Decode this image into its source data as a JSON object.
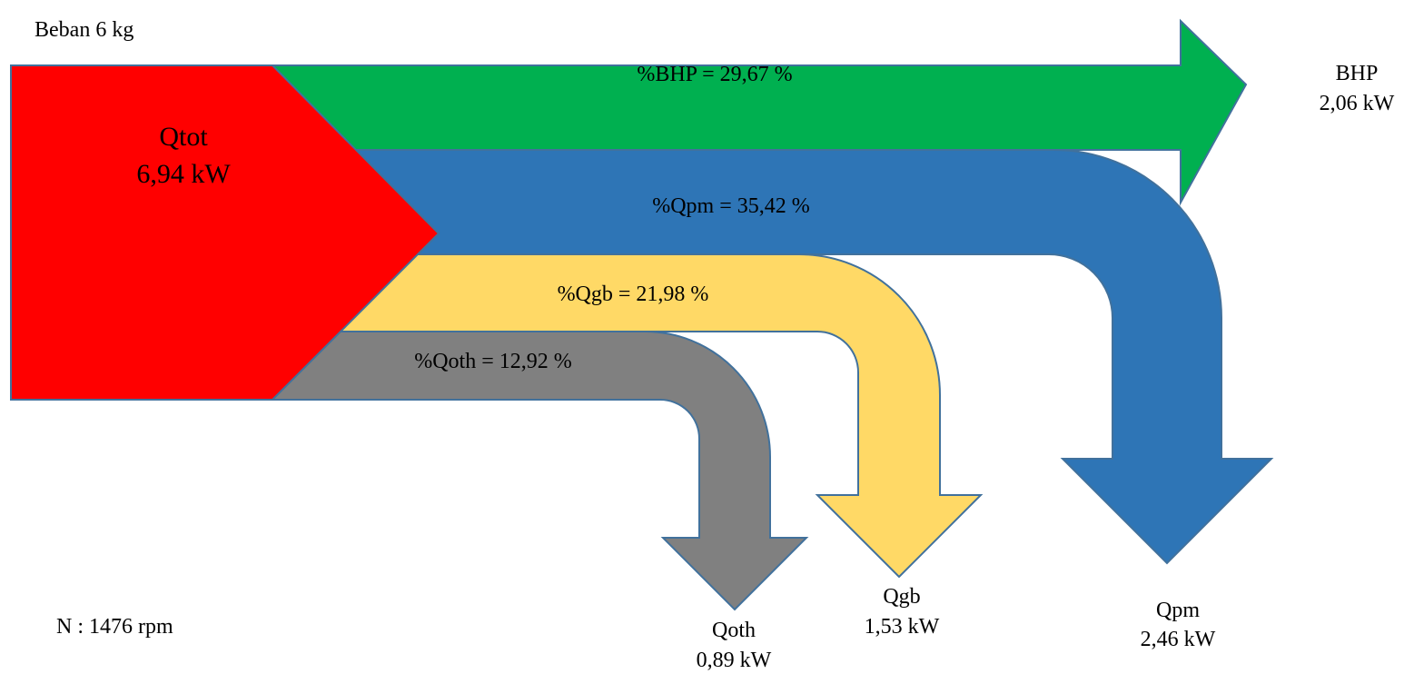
{
  "load_label": "Beban 6 kg",
  "speed_label": "N : 1476 rpm",
  "source": {
    "name": "Qtot",
    "value": "6,94 kW",
    "color": "#FF0000"
  },
  "flows": [
    {
      "key": "bhp",
      "percent_label": "%BHP = 29,67 %",
      "percent": 29.67,
      "name": "BHP",
      "value": "2,06 kW",
      "color": "#00B050"
    },
    {
      "key": "qpm",
      "percent_label": "%Qpm = 35,42 %",
      "percent": 35.42,
      "name": "Qpm",
      "value": "2,46 kW",
      "color": "#2E75B6"
    },
    {
      "key": "qgb",
      "percent_label": "%Qgb = 21,98 %",
      "percent": 21.98,
      "name": "Qgb",
      "value": "1,53 kW",
      "color": "#FFD966"
    },
    {
      "key": "qoth",
      "percent_label": "%Qoth = 12,92 %",
      "percent": 12.92,
      "name": "Qoth",
      "value": "0,89  kW",
      "color": "#808080"
    }
  ]
}
